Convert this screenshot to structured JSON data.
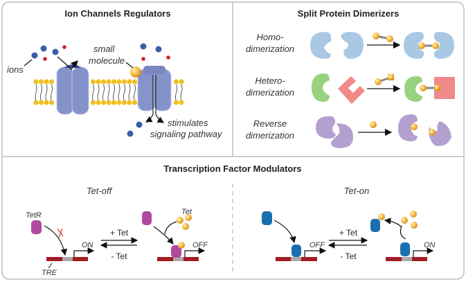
{
  "panels": {
    "ion_channels": {
      "title": "Ion Channels Regulators",
      "ions_label": "ions",
      "small_molecule_line1": "small",
      "small_molecule_line2": "molecule",
      "stimulates_line1": "stimulates",
      "stimulates_line2": "signaling pathway"
    },
    "split_protein": {
      "title": "Split Protein Dimerizers",
      "rows": [
        {
          "line1": "Homo-",
          "line2": "dimerization"
        },
        {
          "line1": "Hetero-",
          "line2": "dimerization"
        },
        {
          "line1": "Reverse",
          "line2": "dimerization"
        }
      ]
    },
    "transcription": {
      "title": "Transcription Factor Modulators",
      "tet_off": {
        "title": "Tet-off",
        "tetr": "TetR",
        "tre": "TRE",
        "tet": "Tet",
        "on": "ON",
        "off": "OFF",
        "plus": "+ Tet",
        "minus": "- Tet"
      },
      "tet_on": {
        "title": "Tet-on",
        "off": "OFF",
        "on": "ON",
        "plus": "+ Tet",
        "minus": "- Tet"
      }
    }
  },
  "colors": {
    "ion_blue": "#3b5ea8",
    "ion_red": "#d0202a",
    "channel": "#8493c9",
    "lipid_head": "#f0c020",
    "ligand": "#f2b440",
    "homo_protein": "#a9c8e3",
    "hetero_green": "#99d27e",
    "hetero_red": "#f08a8a",
    "reverse_purple": "#b3a0cf",
    "tetr_purple": "#b04aa0",
    "rtta_blue": "#1a6fb0",
    "dna": "#a31c24",
    "tre_gray": "#aaaaaa"
  }
}
